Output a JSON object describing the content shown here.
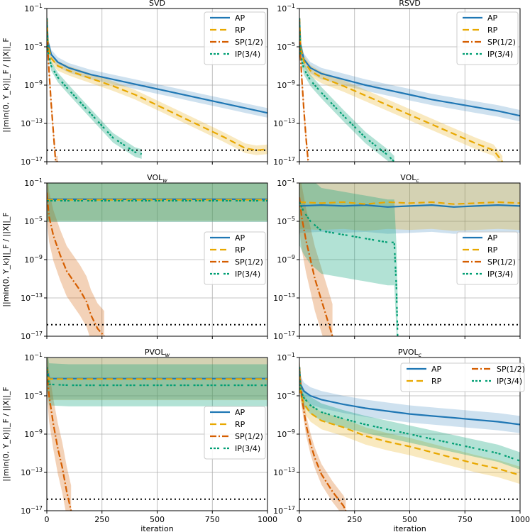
{
  "figure": {
    "xlabel": "iteration",
    "ylabel": "||min(0, Y_k)||_F / ||X||_F",
    "x_ticks": [
      "0",
      "250",
      "500",
      "750",
      "1000"
    ],
    "y_ticks": [
      "10^-1",
      "10^-5",
      "10^-9",
      "10^-13",
      "10^-17"
    ]
  },
  "legend_entries": [
    "AP",
    "RP",
    "SP(1/2)",
    "IP(3/4)"
  ],
  "series_colors": {
    "AP": "#1f77b4",
    "RP": "#e8a800",
    "SP(1/2)": "#d55e00",
    "IP(3/4)": "#009e73"
  },
  "chart_data": [
    {
      "title": "SVD",
      "title_base": "SVD",
      "title_sub": "",
      "type": "line",
      "xlim": [
        0,
        1000
      ],
      "ylim_log10": [
        -17,
        -1
      ],
      "xlabel": "",
      "ylabel": "||min(0, Y_k)||_F / ||X||_F",
      "reference_line_log10": -15.8,
      "legend_position": "top-right",
      "series": [
        {
          "name": "AP",
          "x": [
            0,
            5,
            20,
            50,
            100,
            200,
            300,
            400,
            500,
            600,
            700,
            800,
            900,
            1000
          ],
          "log10_y": [
            -2,
            -4.5,
            -5.8,
            -6.6,
            -7.2,
            -7.9,
            -8.4,
            -8.9,
            -9.4,
            -9.9,
            -10.4,
            -10.9,
            -11.4,
            -11.9
          ]
        },
        {
          "name": "RP",
          "x": [
            0,
            5,
            20,
            50,
            100,
            200,
            300,
            400,
            500,
            600,
            700,
            800,
            900,
            950,
            1000
          ],
          "log10_y": [
            -2,
            -4.8,
            -6.2,
            -7.0,
            -7.5,
            -8.3,
            -9.1,
            -10.0,
            -11.1,
            -12.2,
            -13.3,
            -14.4,
            -15.6,
            -15.8,
            -15.7
          ]
        },
        {
          "name": "SP(1/2)",
          "x": [
            0,
            5,
            10,
            20,
            30,
            40,
            50
          ],
          "log10_y": [
            -2,
            -5.5,
            -7.5,
            -11,
            -14,
            -17,
            -17
          ]
        },
        {
          "name": "IP(3/4)",
          "x": [
            0,
            5,
            20,
            50,
            100,
            200,
            300,
            400,
            430
          ],
          "log10_y": [
            -2,
            -5.5,
            -7,
            -8.2,
            -9.5,
            -12,
            -14.5,
            -16,
            -16.2
          ]
        }
      ]
    },
    {
      "title": "RSVD",
      "title_base": "RSVD",
      "title_sub": "",
      "type": "line",
      "xlim": [
        0,
        1000
      ],
      "ylim_log10": [
        -17,
        -1
      ],
      "xlabel": "",
      "ylabel": "",
      "reference_line_log10": -15.8,
      "legend_position": "top-right",
      "series": [
        {
          "name": "AP",
          "x": [
            0,
            5,
            20,
            50,
            100,
            200,
            300,
            400,
            500,
            600,
            700,
            800,
            900,
            1000
          ],
          "log10_y": [
            -2,
            -4.8,
            -6.3,
            -7.2,
            -7.8,
            -8.4,
            -9.0,
            -9.5,
            -10.0,
            -10.5,
            -10.9,
            -11.3,
            -11.7,
            -12.2
          ]
        },
        {
          "name": "RP",
          "x": [
            0,
            5,
            20,
            50,
            100,
            200,
            300,
            400,
            500,
            600,
            700,
            800,
            880,
            920
          ],
          "log10_y": [
            -2,
            -5,
            -6.5,
            -7.5,
            -8.2,
            -9.1,
            -10.1,
            -11.1,
            -12.1,
            -13.1,
            -14.1,
            -15.1,
            -15.8,
            -17
          ]
        },
        {
          "name": "SP(1/2)",
          "x": [
            0,
            5,
            10,
            20,
            30,
            40
          ],
          "log10_y": [
            -2,
            -6,
            -8,
            -11.5,
            -14.5,
            -17
          ]
        },
        {
          "name": "IP(3/4)",
          "x": [
            0,
            5,
            20,
            50,
            100,
            200,
            300,
            400,
            430
          ],
          "log10_y": [
            -2,
            -5.8,
            -7.3,
            -8.5,
            -9.8,
            -12.2,
            -14.5,
            -16.3,
            -17
          ]
        }
      ]
    },
    {
      "title": "VOLw",
      "title_base": "VOL",
      "title_sub": "w",
      "type": "line",
      "xlim": [
        0,
        1000
      ],
      "ylim_log10": [
        -17,
        -1
      ],
      "xlabel": "",
      "ylabel": "||min(0, Y_k)||_F / ||X||_F",
      "reference_line_log10": -15.8,
      "legend_position": "center-right",
      "series": [
        {
          "name": "AP",
          "x": [
            0,
            1000
          ],
          "log10_y": [
            -2.7,
            -2.7
          ]
        },
        {
          "name": "RP",
          "x": [
            0,
            1000
          ],
          "log10_y": [
            -2.75,
            -2.75
          ]
        },
        {
          "name": "SP(1/2)",
          "x": [
            0,
            10,
            30,
            60,
            90,
            120,
            150,
            180,
            200,
            230,
            260
          ],
          "log10_y": [
            -2,
            -4.5,
            -6.5,
            -8.5,
            -10.2,
            -11.2,
            -12.2,
            -13.4,
            -14.8,
            -16.2,
            -17
          ]
        },
        {
          "name": "IP(3/4)",
          "x": [
            0,
            1000
          ],
          "log10_y": [
            -2.85,
            -2.85
          ]
        }
      ]
    },
    {
      "title": "VOLc",
      "title_base": "VOL",
      "title_sub": "c",
      "type": "line",
      "xlim": [
        0,
        1000
      ],
      "ylim_log10": [
        -17,
        -1
      ],
      "xlabel": "",
      "ylabel": "",
      "reference_line_log10": -15.8,
      "legend_position": "center-right",
      "series": [
        {
          "name": "AP",
          "x": [
            0,
            100,
            200,
            300,
            400,
            500,
            600,
            700,
            800,
            900,
            1000
          ],
          "log10_y": [
            -3.4,
            -3.3,
            -3.4,
            -3.3,
            -3.5,
            -3.4,
            -3.3,
            -3.5,
            -3.4,
            -3.3,
            -3.4
          ]
        },
        {
          "name": "RP",
          "x": [
            0,
            100,
            200,
            300,
            400,
            500,
            600,
            700,
            800,
            900,
            1000
          ],
          "log10_y": [
            -3.0,
            -3.1,
            -3.0,
            -3.2,
            -3.0,
            -3.1,
            -3.0,
            -3.2,
            -3.1,
            -3.0,
            -3.1
          ]
        },
        {
          "name": "SP(1/2)",
          "x": [
            0,
            10,
            30,
            50,
            70,
            90,
            110,
            130,
            150
          ],
          "log10_y": [
            -2.5,
            -4.5,
            -7,
            -9,
            -11,
            -12.5,
            -14,
            -15.5,
            -17
          ]
        },
        {
          "name": "IP(3/4)",
          "x": [
            0,
            20,
            50,
            100,
            200,
            300,
            400,
            430,
            440,
            445
          ],
          "log10_y": [
            -3,
            -4,
            -5,
            -6,
            -6.4,
            -6.8,
            -7.2,
            -7.2,
            -12,
            -17
          ]
        }
      ]
    },
    {
      "title": "PVOLw",
      "title_base": "PVOL",
      "title_sub": "w",
      "type": "line",
      "xlim": [
        0,
        1000
      ],
      "ylim_log10": [
        -17,
        -1
      ],
      "xlabel": "iteration",
      "ylabel": "||min(0, Y_k)||_F / ||X||_F",
      "reference_line_log10": -15.8,
      "legend_position": "center-right",
      "series": [
        {
          "name": "AP",
          "x": [
            0,
            10,
            1000
          ],
          "log10_y": [
            -2,
            -3.2,
            -3.2
          ]
        },
        {
          "name": "RP",
          "x": [
            0,
            10,
            1000
          ],
          "log10_y": [
            -2,
            -3.25,
            -3.25
          ]
        },
        {
          "name": "SP(1/2)",
          "x": [
            0,
            10,
            30,
            50,
            70,
            90,
            110
          ],
          "log10_y": [
            -2,
            -5,
            -8,
            -10.5,
            -12.5,
            -15,
            -17
          ]
        },
        {
          "name": "IP(3/4)",
          "x": [
            0,
            10,
            100,
            1000
          ],
          "log10_y": [
            -2,
            -3.8,
            -3.9,
            -3.9
          ]
        }
      ]
    },
    {
      "title": "PVOLc",
      "title_base": "PVOL",
      "title_sub": "c",
      "type": "line",
      "xlim": [
        0,
        1000
      ],
      "ylim_log10": [
        -17,
        -1
      ],
      "xlabel": "iteration",
      "ylabel": "",
      "reference_line_log10": -15.8,
      "legend_position": "top-right",
      "series": [
        {
          "name": "AP",
          "x": [
            0,
            5,
            20,
            50,
            100,
            200,
            300,
            400,
            500,
            600,
            700,
            800,
            900,
            1000
          ],
          "log10_y": [
            -2,
            -3.8,
            -4.5,
            -5,
            -5.4,
            -5.9,
            -6.3,
            -6.6,
            -6.9,
            -7.1,
            -7.3,
            -7.5,
            -7.7,
            -8.0
          ]
        },
        {
          "name": "RP",
          "x": [
            0,
            5,
            20,
            50,
            100,
            200,
            300,
            400,
            500,
            600,
            700,
            800,
            900,
            1000
          ],
          "log10_y": [
            -2,
            -4.8,
            -5.8,
            -6.8,
            -7.6,
            -8.3,
            -9.2,
            -9.8,
            -10.3,
            -10.9,
            -11.5,
            -12.1,
            -12.6,
            -13.3
          ]
        },
        {
          "name": "SP(1/2)",
          "x": [
            0,
            10,
            30,
            50,
            70,
            100,
            150,
            200,
            210
          ],
          "log10_y": [
            -2,
            -5,
            -8,
            -10,
            -11.5,
            -13.2,
            -15,
            -16.5,
            -17
          ]
        },
        {
          "name": "IP(3/4)",
          "x": [
            0,
            5,
            20,
            50,
            100,
            200,
            300,
            400,
            500,
            600,
            700,
            800,
            900,
            1000
          ],
          "log10_y": [
            -2,
            -4.4,
            -5.2,
            -6,
            -6.7,
            -7.4,
            -8.0,
            -8.5,
            -9.0,
            -9.5,
            -10.0,
            -10.5,
            -11.0,
            -11.8
          ]
        }
      ]
    }
  ]
}
